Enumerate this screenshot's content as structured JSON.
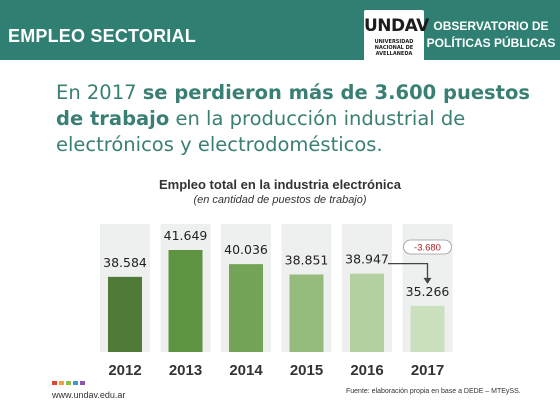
{
  "header": {
    "left_title": "EMPLEO SECTORIAL",
    "logo_mark": "UNDAV",
    "logo_lines": [
      "UNIVERSIDAD",
      "NACIONAL DE",
      "AVELLANEDA"
    ],
    "right_line1": "OBSERVATORIO DE",
    "right_line2": "POLÍTICAS PÚBLICAS"
  },
  "headline": {
    "part1": "En 2017 ",
    "bold": "se perdieron más de 3.600 puestos de trabajo",
    "part2": " en la producción industrial de electrónicos y electrodomésticos."
  },
  "footer": {
    "website": "www.undav.edu.ar",
    "source": "Fuente: elaboración propia en base a DEDE – MTEySS."
  },
  "colors": {
    "header": "#2f7f73",
    "headline": "#3a7f74",
    "bars": [
      "#4f7a37",
      "#5e9341",
      "#74a457",
      "#95bc7c",
      "#b3d0a1",
      "#cbe0bd"
    ],
    "column_bg": "#eef0ef",
    "annotation": "#b42020"
  },
  "chart_data": {
    "type": "bar",
    "title": "Empleo total en la industria electrónica",
    "subtitle": "(en cantidad de puestos de trabajo)",
    "categories": [
      "2012",
      "2013",
      "2014",
      "2015",
      "2016",
      "2017"
    ],
    "values": [
      38584,
      41649,
      40036,
      38851,
      38947,
      35266
    ],
    "value_labels": [
      "38.584",
      "41.649",
      "40.036",
      "38.851",
      "38.947",
      "35.266"
    ],
    "annotation": {
      "text": "-3.680",
      "from": "2016",
      "to": "2017"
    },
    "grid": false,
    "legend": "none"
  }
}
